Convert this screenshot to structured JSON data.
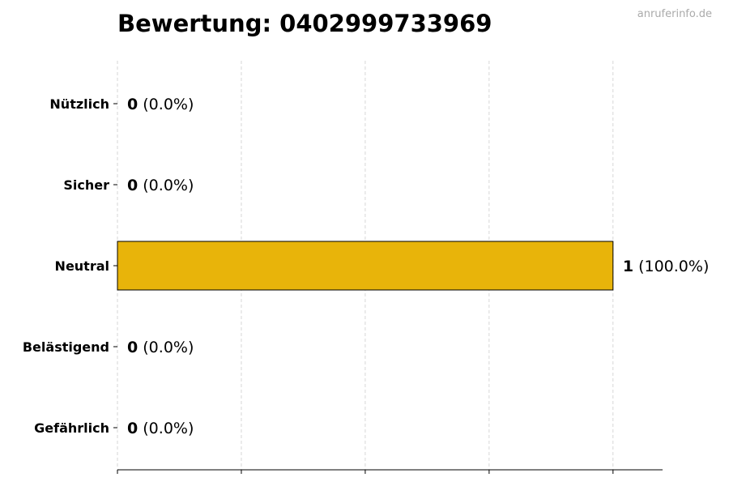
{
  "title": "Bewertung: 0402999733969",
  "watermark": "anruferinfo.de",
  "chart_data": {
    "type": "bar",
    "orientation": "horizontal",
    "title": "Bewertung: 0402999733969",
    "categories": [
      "Nützlich",
      "Sicher",
      "Neutral",
      "Belästigend",
      "Gefährlich"
    ],
    "values": [
      0,
      0,
      1,
      0,
      0
    ],
    "labels": [
      {
        "count": "0",
        "pct": "(0.0%)"
      },
      {
        "count": "0",
        "pct": "(0.0%)"
      },
      {
        "count": "1",
        "pct": "(100.0%)"
      },
      {
        "count": "0",
        "pct": "(0.0%)"
      },
      {
        "count": "0",
        "pct": "(0.0%)"
      }
    ],
    "bar_color": "#E8B40A",
    "xlim": [
      0,
      1.1
    ],
    "xticks": [
      0,
      0.25,
      0.5,
      0.75,
      1.0
    ],
    "xtick_labels_shown": false,
    "grid": "x, dashed",
    "xlabel": "",
    "ylabel": ""
  }
}
